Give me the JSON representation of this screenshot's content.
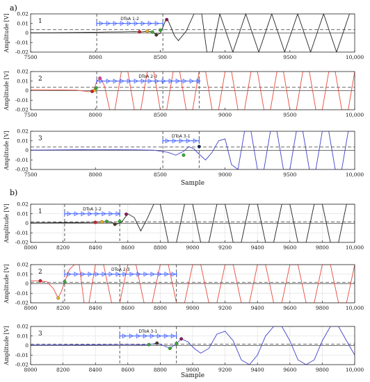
{
  "figure_labels": [
    "a)",
    "b)"
  ],
  "chart_data": [
    {
      "type": "line",
      "panel": "a",
      "xlim": [
        7500,
        10000
      ],
      "xticks": [
        "7500",
        "8000",
        "8500",
        "9000",
        "9500",
        "10,000"
      ],
      "xlabel": "Sample",
      "subplots": [
        {
          "label": "1",
          "color": "#222222",
          "ylim": [
            -0.02,
            0.02
          ],
          "yticks": [
            "0.02",
            "0.01",
            "0",
            "-0.01",
            "-0.02"
          ],
          "ylabel": "Amplitude [V]",
          "series": [
            {
              "x": [
                7500,
                7700,
                7900,
                8000,
                8100,
                8200,
                8300,
                8360,
                8400,
                8440,
                8470,
                8500,
                8520,
                8540,
                8555,
                8580,
                8610,
                8640,
                8700,
                8760,
                8820,
                8860,
                8900,
                8960,
                9060,
                9160,
                9260,
                9360,
                9460,
                9560,
                9660,
                9760,
                9860,
                9960,
                10000
              ],
              "y": [
                0.0002,
                0.0003,
                0.0006,
                0.0008,
                0.001,
                0.0012,
                0.0014,
                0.0012,
                0.0018,
                0.001,
                -0.002,
                -0.0005,
                0.006,
                0.013,
                0.0145,
                0.007,
                -0.003,
                -0.008,
                0.002,
                0.02,
                0.02,
                -0.02,
                -0.02,
                0.02,
                -0.02,
                0.02,
                -0.02,
                0.02,
                -0.02,
                0.02,
                -0.02,
                0.02,
                -0.02,
                0.02,
                0.02
              ]
            }
          ],
          "threshold": 0.0035,
          "vlines": [
            8010,
            8520
          ],
          "dtoa": {
            "label": "DToA 1-2",
            "x0": 8010,
            "x1": 8520,
            "y": 0.01
          },
          "markers": [
            {
              "x": 8340,
              "y": 0.0012,
              "color": "#cc2222"
            },
            {
              "x": 8400,
              "y": 0.0018,
              "color": "#e8b020"
            },
            {
              "x": 8440,
              "y": 0.001,
              "color": "#33aa33"
            },
            {
              "x": 8470,
              "y": -0.002,
              "color": "#4a3a20"
            },
            {
              "x": 8500,
              "y": 0.003,
              "color": "#33aa33"
            },
            {
              "x": 8550,
              "y": 0.014,
              "color": "#8a1a5a"
            }
          ]
        },
        {
          "label": "2",
          "color": "#e8483c",
          "ylim": [
            -0.02,
            0.02
          ],
          "yticks": [
            "0.02",
            "0.01",
            "0",
            "-0.01",
            "-0.02"
          ],
          "ylabel": "Amplitude [V]",
          "series": [
            {
              "x": [
                7500,
                7700,
                7850,
                7950,
                7990,
                8010,
                8040,
                8070,
                8110,
                8150,
                8200,
                8250,
                8300,
                8350,
                8400,
                8450,
                8500,
                8550,
                8600,
                8650,
                8700,
                8750,
                8800,
                8850,
                8900,
                8950,
                9000,
                9050,
                9100,
                9150,
                9200,
                9250,
                9300,
                9350,
                9400,
                9450,
                9500,
                9550,
                9600,
                9650,
                9700,
                9750,
                9800,
                9850,
                9900,
                9950,
                10000
              ],
              "y": [
                0.001,
                0.0008,
                0.0005,
                -0.001,
                0.001,
                0.01,
                0.013,
                0.005,
                -0.02,
                -0.02,
                0.02,
                0.02,
                -0.02,
                -0.02,
                0.02,
                0.02,
                -0.02,
                -0.02,
                0.02,
                0.02,
                -0.02,
                -0.02,
                0.02,
                0.02,
                -0.02,
                -0.02,
                0.02,
                0.02,
                -0.02,
                -0.02,
                0.02,
                0.02,
                -0.02,
                -0.02,
                0.02,
                0.02,
                -0.02,
                -0.02,
                0.02,
                0.02,
                -0.02,
                -0.02,
                0.02,
                0.02,
                -0.02,
                -0.02,
                0.02
              ]
            }
          ],
          "threshold": 0.0035,
          "vlines": [
            8010,
            8520,
            8800
          ],
          "dtoa": {
            "label": "DToA 2-3",
            "x0": 8010,
            "x1": 8800,
            "y": 0.01
          },
          "markers": [
            {
              "x": 7975,
              "y": -0.0008,
              "color": "#cc2222"
            },
            {
              "x": 7995,
              "y": 0.0004,
              "color": "#e8b020"
            },
            {
              "x": 8005,
              "y": 0.0025,
              "color": "#33aa33"
            },
            {
              "x": 8035,
              "y": 0.013,
              "color": "#e040a0"
            }
          ]
        },
        {
          "label": "3",
          "color": "#4040cc",
          "ylim": [
            -0.02,
            0.02
          ],
          "yticks": [
            "0.02",
            "0.01",
            "0",
            "-0.01",
            "-0.02"
          ],
          "ylabel": "Amplitude [V]",
          "series": [
            {
              "x": [
                7500,
                7700,
                7900,
                8100,
                8300,
                8450,
                8560,
                8620,
                8680,
                8720,
                8760,
                8800,
                8850,
                8900,
                8950,
                9000,
                9050,
                9100,
                9150,
                9200,
                9250,
                9300,
                9350,
                9400,
                9450,
                9500,
                9550,
                9600,
                9650,
                9700,
                9750,
                9800,
                9850,
                9900,
                9950,
                10000
              ],
              "y": [
                0.0003,
                0.0005,
                0.0007,
                0.0008,
                0.0006,
                0.0002,
                -0.002,
                -0.005,
                -0.001,
                0.004,
                0.0015,
                -0.004,
                -0.01,
                -0.002,
                0.01,
                0.012,
                -0.015,
                -0.02,
                0.02,
                0.02,
                -0.02,
                -0.02,
                0.02,
                0.02,
                -0.02,
                -0.02,
                0.02,
                0.02,
                -0.02,
                -0.02,
                0.02,
                0.02,
                -0.02,
                -0.02,
                0.02,
                0.02
              ]
            }
          ],
          "threshold": 0.0035,
          "vlines": [
            8520,
            8800
          ],
          "dtoa": {
            "label": "DToA 3-1",
            "x0": 8520,
            "x1": 8800,
            "y": 0.01
          },
          "markers": [
            {
              "x": 8680,
              "y": -0.005,
              "color": "#33aa33"
            },
            {
              "x": 8800,
              "y": 0.004,
              "color": "#1a2a5a"
            }
          ]
        }
      ]
    },
    {
      "type": "line",
      "panel": "b",
      "xlim": [
        8000,
        10000
      ],
      "xticks": [
        "8000",
        "8200",
        "8400",
        "8600",
        "8800",
        "9000",
        "9200",
        "9400",
        "9600",
        "9800",
        "10,000"
      ],
      "xlabel": "Sample",
      "subplots": [
        {
          "label": "1",
          "color": "#222222",
          "ylim": [
            -0.02,
            0.02
          ],
          "yticks": [
            "0.02",
            "0.01",
            "0",
            "-0.01",
            "-0.02"
          ],
          "ylabel": "Amplitude [V]",
          "series": [
            {
              "x": [
                8000,
                8100,
                8200,
                8300,
                8400,
                8450,
                8500,
                8530,
                8560,
                8600,
                8640,
                8680,
                8720,
                8760,
                8800,
                8850,
                8900,
                8950,
                9000,
                9050,
                9100,
                9150,
                9200,
                9250,
                9300,
                9350,
                9400,
                9450,
                9500,
                9550,
                9600,
                9650,
                9700,
                9750,
                9800,
                9850,
                9900,
                9950,
                10000
              ],
              "y": [
                0.0005,
                0.0006,
                0.0007,
                0.0008,
                0.001,
                0.0015,
                0.001,
                -0.001,
                0.001,
                0.01,
                0.006,
                -0.008,
                0.005,
                0.02,
                0.02,
                -0.02,
                -0.02,
                0.02,
                0.02,
                -0.02,
                -0.02,
                0.02,
                0.02,
                -0.02,
                -0.02,
                0.02,
                0.02,
                -0.02,
                -0.02,
                0.02,
                0.02,
                -0.02,
                -0.02,
                0.02,
                0.02,
                -0.02,
                -0.02,
                0.02,
                0.02
              ]
            }
          ],
          "threshold": 0.0015,
          "vlines": [
            8210,
            8550
          ],
          "dtoa": {
            "label": "DToA 1-2",
            "x0": 8210,
            "x1": 8550,
            "y": 0.01
          },
          "markers": [
            {
              "x": 8400,
              "y": 0.001,
              "color": "#cc2222"
            },
            {
              "x": 8440,
              "y": 0.0015,
              "color": "#e8b020"
            },
            {
              "x": 8470,
              "y": 0.002,
              "color": "#33aa33"
            },
            {
              "x": 8520,
              "y": -0.001,
              "color": "#4a3a20"
            },
            {
              "x": 8550,
              "y": 0.002,
              "color": "#33aa33"
            },
            {
              "x": 8590,
              "y": 0.0095,
              "color": "#8a1a5a"
            }
          ]
        },
        {
          "label": "2",
          "color": "#e8483c",
          "ylim": [
            -0.02,
            0.02
          ],
          "yticks": [
            "0.02",
            "0.01",
            "0",
            "-0.01",
            "-0.02"
          ],
          "ylabel": "Amplitude [V]",
          "series": [
            {
              "x": [
                8000,
                8060,
                8100,
                8140,
                8170,
                8190,
                8210,
                8240,
                8270,
                8300,
                8330,
                8360,
                8400,
                8450,
                8500,
                8550,
                8600,
                8650,
                8700,
                8750,
                8800,
                8850,
                8900,
                8950,
                9000,
                9050,
                9100,
                9150,
                9200,
                9250,
                9300,
                9350,
                9400,
                9450,
                9500,
                9550,
                9600,
                9650,
                9700,
                9750,
                9800,
                9850,
                9900,
                9950,
                10000
              ],
              "y": [
                0.003,
                0.003,
                0.002,
                -0.005,
                -0.015,
                -0.008,
                0.002,
                0.015,
                0.02,
                0.02,
                -0.02,
                -0.02,
                0.02,
                0.02,
                -0.02,
                -0.02,
                0.02,
                0.02,
                -0.02,
                -0.02,
                0.02,
                0.02,
                -0.02,
                -0.02,
                0.02,
                0.02,
                -0.02,
                -0.02,
                0.02,
                0.02,
                -0.02,
                -0.02,
                0.02,
                0.02,
                -0.02,
                -0.02,
                0.02,
                0.02,
                -0.02,
                -0.02,
                0.02,
                0.02,
                -0.02,
                -0.02,
                0.02
              ]
            }
          ],
          "threshold": 0.0015,
          "vlines": [
            8210,
            8550,
            8900
          ],
          "dtoa": {
            "label": "DToA 2-3",
            "x0": 8210,
            "x1": 8900,
            "y": 0.01
          },
          "markers": [
            {
              "x": 8060,
              "y": 0.003,
              "color": "#cc2222"
            },
            {
              "x": 8170,
              "y": -0.015,
              "color": "#e8b020"
            },
            {
              "x": 8210,
              "y": 0.002,
              "color": "#33aa33"
            }
          ]
        },
        {
          "label": "3",
          "color": "#4040cc",
          "ylim": [
            -0.02,
            0.02
          ],
          "yticks": [
            "0.02",
            "0.01",
            "0",
            "-0.01",
            "-0.02"
          ],
          "ylabel": "Amplitude [V]",
          "series": [
            {
              "x": [
                8000,
                8200,
                8400,
                8600,
                8700,
                8750,
                8780,
                8820,
                8860,
                8900,
                8930,
                8970,
                9010,
                9050,
                9100,
                9150,
                9200,
                9250,
                9300,
                9350,
                9400,
                9450,
                9500,
                9550,
                9600,
                9650,
                9700,
                9750,
                9800,
                9850,
                9900,
                9950,
                10000
              ],
              "y": [
                0.0005,
                0.0006,
                0.0008,
                0.001,
                0.0008,
                0.0015,
                0.0025,
                0.0,
                -0.003,
                0.002,
                0.007,
                0.004,
                -0.003,
                -0.008,
                -0.003,
                0.012,
                0.015,
                0.005,
                -0.015,
                -0.02,
                -0.01,
                0.01,
                0.02,
                0.02,
                0.005,
                -0.015,
                -0.02,
                -0.015,
                0.005,
                0.02,
                0.02,
                0.005,
                -0.01
              ]
            }
          ],
          "threshold": 0.0015,
          "vlines": [
            8550,
            8900
          ],
          "dtoa": {
            "label": "DToA 3-1",
            "x0": 8550,
            "x1": 8900,
            "y": 0.01
          },
          "markers": [
            {
              "x": 8730,
              "y": 0.001,
              "color": "#33aa33"
            },
            {
              "x": 8780,
              "y": 0.0025,
              "color": "#4a3a20"
            },
            {
              "x": 8860,
              "y": -0.003,
              "color": "#33aa33"
            },
            {
              "x": 8900,
              "y": 0.002,
              "color": "#33aa33"
            },
            {
              "x": 8930,
              "y": 0.007,
              "color": "#8a1a5a"
            }
          ]
        }
      ]
    }
  ]
}
